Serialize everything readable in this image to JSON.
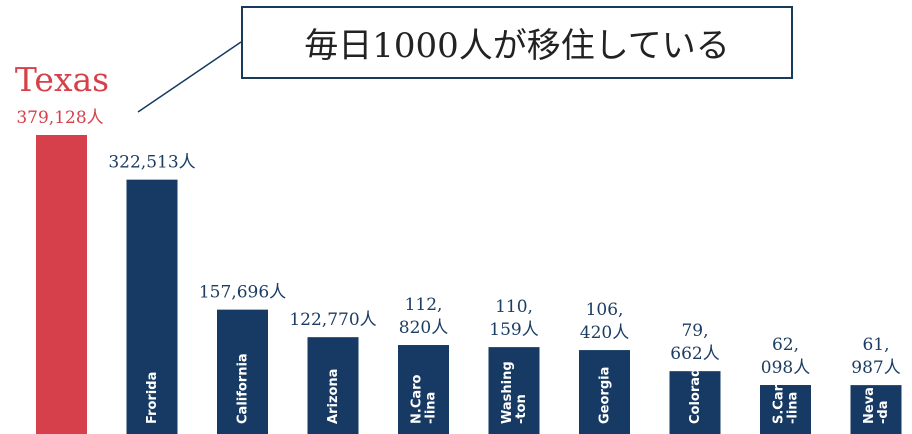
{
  "callout": {
    "text": "毎日1000人が移住している"
  },
  "chart_data": {
    "type": "bar",
    "categories": [
      "Texas",
      "Frorida",
      "California",
      "Arizona",
      "N.Caro-lina",
      "Washing-ton",
      "Georgia",
      "Colorado",
      "S.Caro-lina",
      "Neva-da"
    ],
    "category_lines": [
      [
        "Texas"
      ],
      [
        "Frorida"
      ],
      [
        "California"
      ],
      [
        "Arizona"
      ],
      [
        "N.Caro",
        "-lina"
      ],
      [
        "Washing",
        "-ton"
      ],
      [
        "Georgia"
      ],
      [
        "Colorado"
      ],
      [
        "S.Caro",
        "-lina"
      ],
      [
        "Neva",
        "-da"
      ]
    ],
    "values": [
      379128,
      322513,
      157696,
      122770,
      112820,
      110159,
      106420,
      79662,
      62098,
      61987
    ],
    "value_label_lines": [
      [
        "379,128人"
      ],
      [
        "322,513人"
      ],
      [
        "157,696人"
      ],
      [
        "122,770人"
      ],
      [
        "112,",
        "820人"
      ],
      [
        "110,",
        "159人"
      ],
      [
        "106,",
        "420人"
      ],
      [
        "79,",
        "662人"
      ],
      [
        "62,",
        "098人"
      ],
      [
        "61,",
        "987人"
      ]
    ],
    "highlight_index": 0,
    "colors": {
      "highlight": "#d6404a",
      "bar": "#163a63",
      "label_text": "#1c3d63",
      "bar_text": "#ffffff",
      "connector": "#163a63"
    },
    "ylim": [
      0,
      379128
    ]
  }
}
